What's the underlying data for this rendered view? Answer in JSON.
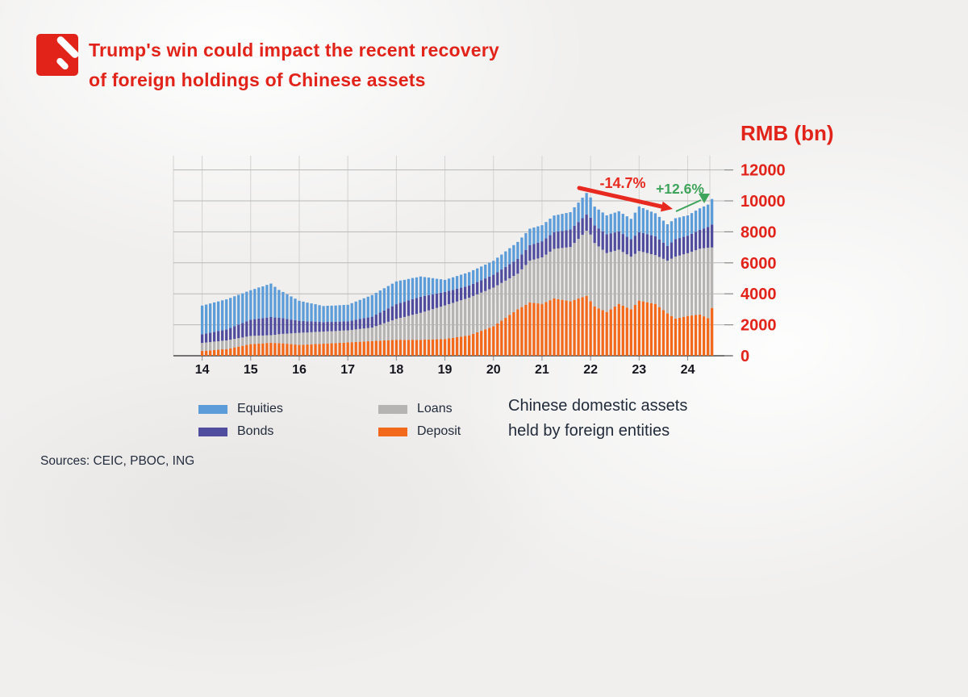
{
  "header": {
    "title_line1": "Trump's win could impact the recent recovery",
    "title_line2": "of foreign holdings of Chinese assets"
  },
  "source_note": "Sources: CEIC, PBOC, ING",
  "colors": {
    "accent_red": "#e2231a",
    "green": "#3fa45b",
    "text_dark": "#222b3a",
    "grid": "#c9c9c9",
    "axis": "#4a4a4a"
  },
  "chart_data": {
    "type": "bar",
    "stacked": true,
    "unit_label": "RMB (bn)",
    "note_line1": "Chinese domestic assets",
    "note_line2": "held by foreign entities",
    "x_tick_labels": [
      "14",
      "15",
      "16",
      "17",
      "18",
      "19",
      "20",
      "21",
      "22",
      "23",
      "24"
    ],
    "y_ticks": [
      0,
      2000,
      4000,
      6000,
      8000,
      10000,
      12000
    ],
    "ylim": [
      0,
      12400
    ],
    "x_span": "monthly, Jan 2014 - Jul 2024",
    "legend": [
      {
        "label": "Equities",
        "color": "#5c9cd9"
      },
      {
        "label": "Bonds",
        "color": "#504d9e"
      },
      {
        "label": "Loans",
        "color": "#b5b4b3"
      },
      {
        "label": "Deposit",
        "color": "#f2691c"
      }
    ],
    "annotations": [
      {
        "id": "decline",
        "label": "-14.7%",
        "color": "#e8291f"
      },
      {
        "id": "recovery",
        "label": "+12.6%",
        "color": "#3fa45b"
      }
    ],
    "series": [
      {
        "name": "Deposit",
        "color": "#f2691c",
        "values": [
          310,
          330,
          350,
          375,
          390,
          415,
          430,
          480,
          540,
          590,
          640,
          700,
          750,
          770,
          790,
          800,
          825,
          840,
          825,
          815,
          800,
          775,
          750,
          725,
          700,
          715,
          725,
          740,
          755,
          765,
          780,
          795,
          805,
          820,
          835,
          845,
          860,
          875,
          890,
          905,
          920,
          935,
          950,
          965,
          975,
          990,
          1005,
          1015,
          1030,
          1035,
          1025,
          1030,
          1035,
          1025,
          1030,
          1040,
          1045,
          1055,
          1065,
          1070,
          1080,
          1120,
          1160,
          1200,
          1240,
          1280,
          1320,
          1420,
          1510,
          1610,
          1705,
          1805,
          1900,
          2085,
          2265,
          2450,
          2635,
          2815,
          3000,
          3145,
          3295,
          3440,
          3410,
          3380,
          3350,
          3465,
          3585,
          3700,
          3655,
          3610,
          3565,
          3520,
          3610,
          3695,
          3785,
          3870,
          3525,
          3180,
          3060,
          2945,
          2830,
          3005,
          3175,
          3350,
          3235,
          3115,
          3000,
          3280,
          3560,
          3510,
          3455,
          3400,
          3350,
          3145,
          2945,
          2740,
          2570,
          2400,
          2455,
          2515,
          2570,
          2600,
          2630,
          2660,
          2545,
          2425,
          3090
        ]
      },
      {
        "name": "Loans",
        "color": "#b5b4b3",
        "values": [
          520,
          525,
          535,
          540,
          545,
          555,
          560,
          555,
          550,
          545,
          540,
          535,
          530,
          520,
          515,
          505,
          495,
          490,
          530,
          575,
          615,
          655,
          695,
          740,
          780,
          780,
          775,
          780,
          785,
          780,
          780,
          785,
          780,
          775,
          780,
          785,
          780,
          795,
          810,
          825,
          840,
          855,
          870,
          950,
          1030,
          1110,
          1190,
          1270,
          1350,
          1415,
          1480,
          1545,
          1610,
          1675,
          1740,
          1810,
          1885,
          1955,
          2025,
          2100,
          2170,
          2215,
          2255,
          2300,
          2345,
          2385,
          2430,
          2440,
          2455,
          2465,
          2475,
          2490,
          2500,
          2465,
          2435,
          2400,
          2365,
          2335,
          2300,
          2435,
          2565,
          2700,
          2800,
          2900,
          3000,
          3065,
          3135,
          3200,
          3275,
          3350,
          3425,
          3500,
          3675,
          3850,
          4025,
          4200,
          4300,
          4100,
          4000,
          3900,
          3800,
          3700,
          3600,
          3500,
          3465,
          3435,
          3400,
          3300,
          3200,
          3190,
          3175,
          3160,
          3150,
          3235,
          3315,
          3400,
          3700,
          4000,
          4015,
          4035,
          4050,
          4115,
          4185,
          4250,
          4400,
          4550,
          3900
        ]
      },
      {
        "name": "Bonds",
        "color": "#504d9e",
        "values": [
          560,
          585,
          605,
          630,
          655,
          675,
          700,
          760,
          815,
          875,
          935,
          990,
          1050,
          1075,
          1100,
          1120,
          1145,
          1170,
          1115,
          1060,
          1005,
          945,
          890,
          835,
          780,
          750,
          725,
          695,
          665,
          640,
          610,
          605,
          600,
          595,
          590,
          585,
          580,
          600,
          620,
          640,
          660,
          680,
          700,
          740,
          785,
          825,
          865,
          910,
          950,
          965,
          980,
          995,
          1010,
          1025,
          1040,
          1010,
          985,
          955,
          925,
          900,
          870,
          855,
          840,
          825,
          810,
          795,
          780,
          790,
          795,
          805,
          815,
          820,
          830,
          850,
          870,
          890,
          910,
          930,
          950,
          965,
          980,
          995,
          1010,
          1025,
          1040,
          1055,
          1065,
          1080,
          1090,
          1105,
          1115,
          1130,
          1110,
          1090,
          1070,
          1050,
          1090,
          1130,
          1160,
          1190,
          1220,
          1205,
          1190,
          1175,
          1160,
          1145,
          1130,
          1175,
          1220,
          1220,
          1220,
          1220,
          1220,
          1135,
          1045,
          960,
          1045,
          1130,
          1130,
          1130,
          1130,
          1160,
          1190,
          1220,
          1275,
          1335,
          1480
        ]
      },
      {
        "name": "Equities",
        "color": "#5c9cd9",
        "values": [
          1850,
          1865,
          1885,
          1900,
          1915,
          1935,
          1950,
          1940,
          1935,
          1925,
          1915,
          1910,
          1900,
          1950,
          2005,
          2055,
          2110,
          2160,
          1980,
          1800,
          1700,
          1595,
          1495,
          1390,
          1290,
          1250,
          1205,
          1165,
          1125,
          1080,
          1040,
          1045,
          1050,
          1055,
          1060,
          1065,
          1070,
          1125,
          1180,
          1235,
          1290,
          1345,
          1400,
          1410,
          1425,
          1435,
          1445,
          1460,
          1470,
          1445,
          1415,
          1390,
          1365,
          1335,
          1310,
          1220,
          1135,
          1045,
          955,
          870,
          780,
          795,
          810,
          825,
          840,
          855,
          870,
          875,
          880,
          885,
          890,
          895,
          900,
          935,
          965,
          1000,
          1035,
          1065,
          1100,
          1090,
          1080,
          1070,
          1060,
          1050,
          1040,
          1050,
          1065,
          1075,
          1085,
          1095,
          1110,
          1120,
          1190,
          1255,
          1325,
          1390,
          1305,
          1220,
          1220,
          1215,
          1215,
          1245,
          1275,
          1305,
          1305,
          1310,
          1310,
          1485,
          1655,
          1610,
          1565,
          1525,
          1480,
          1450,
          1420,
          1390,
          1370,
          1350,
          1335,
          1325,
          1310,
          1335,
          1365,
          1390,
          1420,
          1450,
          1650
        ]
      }
    ]
  }
}
